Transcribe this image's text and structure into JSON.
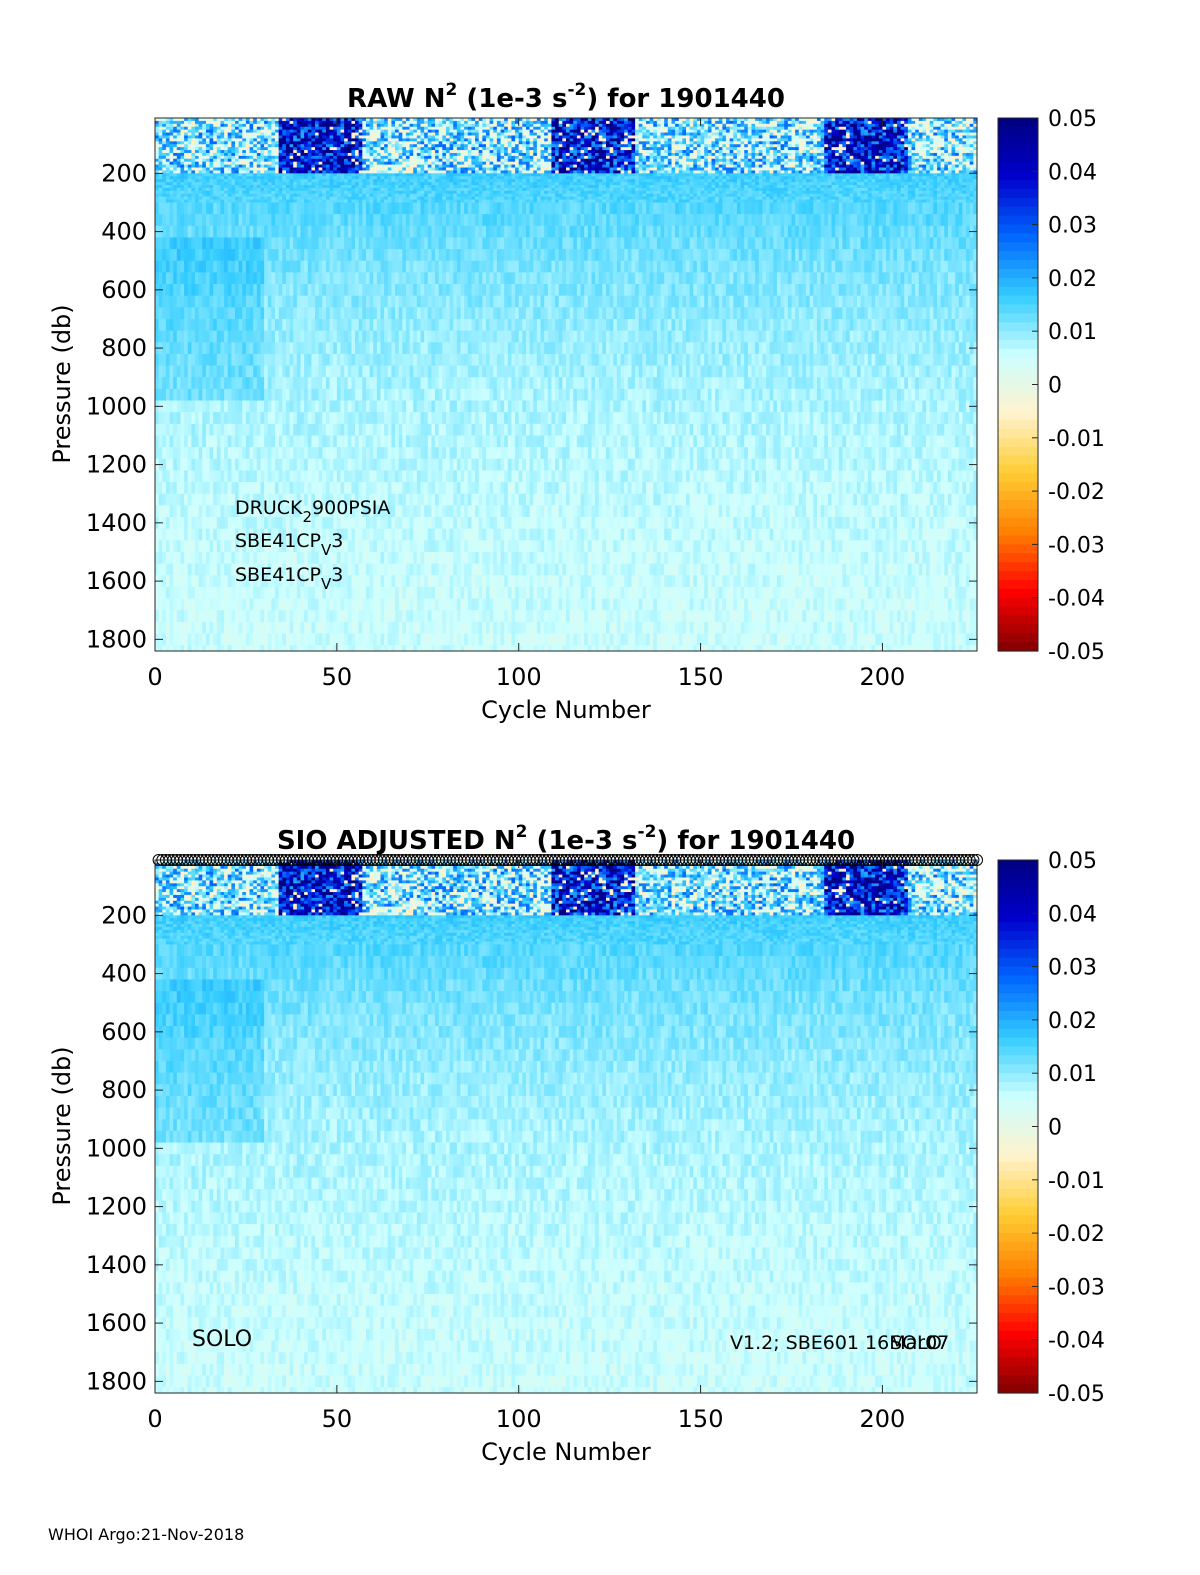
{
  "footer": "WHOI Argo:21-Nov-2018",
  "chart_data": [
    {
      "type": "heatmap",
      "title_prefix": "RAW N",
      "title_sup1": "2",
      "title_mid": " (1e-3 s",
      "title_sup2": "-2",
      "title_suffix": ") for 1901440",
      "xlabel": "Cycle Number",
      "ylabel": "Pressure (db)",
      "xlim": [
        0,
        226
      ],
      "ylim": [
        10,
        1840
      ],
      "y_reversed": true,
      "xticks": [
        "0",
        "50",
        "100",
        "150",
        "200"
      ],
      "yticks": [
        "200",
        "400",
        "600",
        "800",
        "1000",
        "1200",
        "1400",
        "1600",
        "1800"
      ],
      "clim": [
        -0.05,
        0.05
      ],
      "colormap": [
        "#800000",
        "#ff0000",
        "#ff8000",
        "#ffcc33",
        "#fff2cc",
        "#ccffff",
        "#33ccff",
        "#0066ff",
        "#0000cc",
        "#000080"
      ],
      "colorbar_ticks": [
        "0.05",
        "0.04",
        "0.03",
        "0.02",
        "0.01",
        "0",
        "-0.01",
        "-0.02",
        "-0.03",
        "-0.04",
        "-0.05"
      ],
      "sensor_lines": [
        {
          "main": "DRUCK",
          "sub": "2",
          "rest": "900PSIA"
        },
        {
          "main": "SBE41CP",
          "sub": "V",
          "rest": "3"
        },
        {
          "main": "SBE41CP",
          "sub": "V",
          "rest": "3"
        }
      ]
    },
    {
      "type": "heatmap",
      "title_prefix": "SIO  ADJUSTED N",
      "title_sup1": "2",
      "title_mid": " (1e-3 s",
      "title_sup2": "-2",
      "title_suffix": ") for 1901440",
      "xlabel": "Cycle Number",
      "ylabel": "Pressure (db)",
      "xlim": [
        0,
        226
      ],
      "ylim": [
        10,
        1840
      ],
      "y_reversed": true,
      "xticks": [
        "0",
        "50",
        "100",
        "150",
        "200"
      ],
      "yticks": [
        "200",
        "400",
        "600",
        "800",
        "1000",
        "1200",
        "1400",
        "1600",
        "1800"
      ],
      "clim": [
        -0.05,
        0.05
      ],
      "colormap": [
        "#800000",
        "#ff0000",
        "#ff8000",
        "#ffcc33",
        "#fff2cc",
        "#ccffff",
        "#33ccff",
        "#0066ff",
        "#0000cc",
        "#000080"
      ],
      "colorbar_ticks": [
        "0.05",
        "0.04",
        "0.03",
        "0.02",
        "0.01",
        "0",
        "-0.01",
        "-0.02",
        "-0.03",
        "-0.04",
        "-0.05"
      ],
      "qc_marker_row": "circles at every cycle along top edge",
      "left_note": "SOLO",
      "right_note_1": "V1.2; SBE601 16Mar07",
      "right_note_2": "SOLO"
    }
  ]
}
